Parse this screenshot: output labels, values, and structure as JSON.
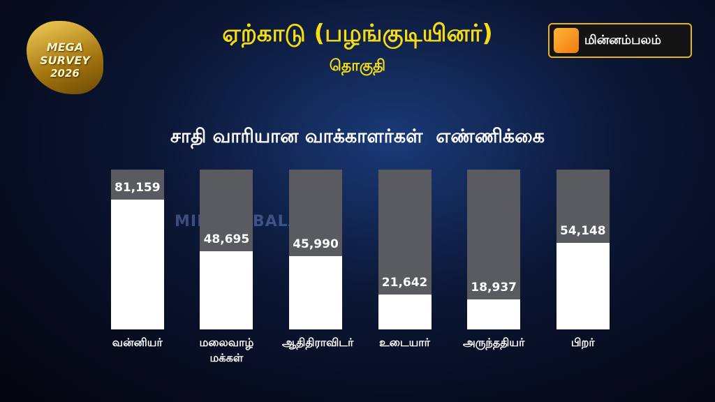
{
  "header": {
    "title": "ஏற்காடு (பழங்குடியினர்)",
    "subtitle": "தொகுதி",
    "badge": "MEGA SURVEY",
    "badge_year": "2026",
    "logo": "மின்னம்பலம்",
    "watermark": "MINNAMBALAM"
  },
  "chart_data": {
    "type": "bar",
    "title": "சாதி வாரியான வாக்காளர்கள்  எண்ணிக்கை",
    "categories": [
      "வன்னியர்",
      "மலைவாழ் மக்கள்",
      "ஆதிதிராவிடர்",
      "உடையார்",
      "அருந்ததியர்",
      "பிறர்"
    ],
    "values": [
      81159,
      48695,
      45990,
      21642,
      18937,
      54148
    ],
    "value_labels": [
      "81,159",
      "48,695",
      "45,990",
      "21,642",
      "18,937",
      "54,148"
    ],
    "color": "#ffffff",
    "track_color": "#595b60",
    "ylim": [
      0,
      100000
    ]
  }
}
